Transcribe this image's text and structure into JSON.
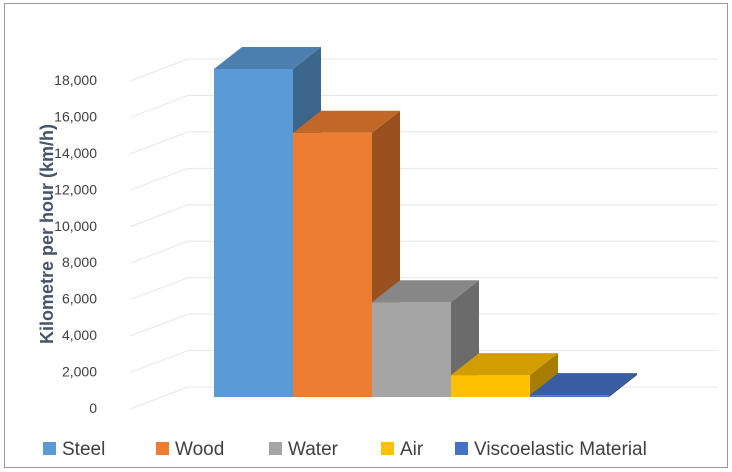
{
  "chart_data": {
    "type": "bar",
    "title": "",
    "xlabel": "",
    "ylabel": "Kilometre per hour (km/h)",
    "categories": [
      "Steel",
      "Wood",
      "Water",
      "Air",
      "Viscoelastic Material"
    ],
    "values": [
      18000,
      14500,
      5200,
      1200,
      100
    ],
    "ylim": [
      0,
      18000
    ],
    "yticks": [
      "0",
      "2,000",
      "4,000",
      "6,000",
      "8,000",
      "10,000",
      "12,000",
      "14,000",
      "16,000",
      "18,000"
    ],
    "grid": true,
    "legend": "bottom",
    "colors": [
      "#5b9bd5",
      "#ed7d31",
      "#a5a5a5",
      "#ffc000",
      "#4472c4"
    ],
    "style": "3d-bar"
  }
}
